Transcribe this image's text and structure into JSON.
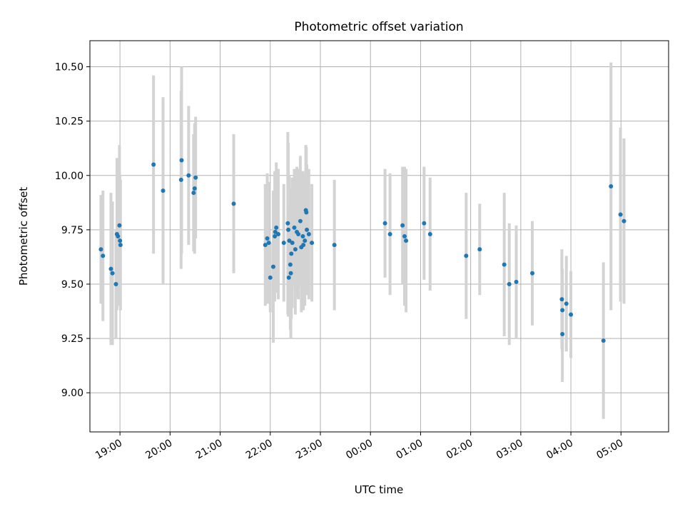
{
  "chart_data": {
    "type": "scatter",
    "title": "Photometric offset variation",
    "xlabel": "UTC time",
    "ylabel": "Photometric offset",
    "x_unit": "UTC time (hours; values past 24 denote the following day)",
    "xlim": [
      18.4,
      29.95
    ],
    "ylim": [
      8.82,
      10.62
    ],
    "x_ticks": [
      {
        "v": 19,
        "label": "19:00"
      },
      {
        "v": 20,
        "label": "20:00"
      },
      {
        "v": 21,
        "label": "21:00"
      },
      {
        "v": 22,
        "label": "22:00"
      },
      {
        "v": 23,
        "label": "23:00"
      },
      {
        "v": 24,
        "label": "00:00"
      },
      {
        "v": 25,
        "label": "01:00"
      },
      {
        "v": 26,
        "label": "02:00"
      },
      {
        "v": 27,
        "label": "03:00"
      },
      {
        "v": 28,
        "label": "04:00"
      },
      {
        "v": 29,
        "label": "05:00"
      }
    ],
    "y_ticks": [
      {
        "v": 9.0,
        "label": "9.00"
      },
      {
        "v": 9.25,
        "label": "9.25"
      },
      {
        "v": 9.5,
        "label": "9.50"
      },
      {
        "v": 9.75,
        "label": "9.75"
      },
      {
        "v": 10.0,
        "label": "10.00"
      },
      {
        "v": 10.25,
        "label": "10.25"
      },
      {
        "v": 10.5,
        "label": "10.50"
      }
    ],
    "grid": true,
    "colors": {
      "points": "#1f77b4",
      "error_bars": "#d3d3d3",
      "grid": "#b0b0b0"
    },
    "points": [
      {
        "x": 18.62,
        "y": 9.66,
        "err": 0.25
      },
      {
        "x": 18.66,
        "y": 9.63,
        "err": 0.3
      },
      {
        "x": 18.82,
        "y": 9.57,
        "err": 0.35
      },
      {
        "x": 18.85,
        "y": 9.55,
        "err": 0.33
      },
      {
        "x": 18.92,
        "y": 9.5,
        "err": 0.25
      },
      {
        "x": 18.94,
        "y": 9.73,
        "err": 0.35
      },
      {
        "x": 18.96,
        "y": 9.72,
        "err": 0.3
      },
      {
        "x": 18.99,
        "y": 9.77,
        "err": 0.37
      },
      {
        "x": 19.0,
        "y": 9.7,
        "err": 0.3
      },
      {
        "x": 19.01,
        "y": 9.68,
        "err": 0.3
      },
      {
        "x": 19.67,
        "y": 10.05,
        "err": 0.41
      },
      {
        "x": 19.86,
        "y": 9.93,
        "err": 0.43
      },
      {
        "x": 20.22,
        "y": 9.98,
        "err": 0.41
      },
      {
        "x": 20.23,
        "y": 10.07,
        "err": 0.43
      },
      {
        "x": 20.37,
        "y": 10.0,
        "err": 0.32
      },
      {
        "x": 20.47,
        "y": 9.92,
        "err": 0.27
      },
      {
        "x": 20.49,
        "y": 9.94,
        "err": 0.3
      },
      {
        "x": 20.51,
        "y": 9.99,
        "err": 0.28
      },
      {
        "x": 21.27,
        "y": 9.87,
        "err": 0.32
      },
      {
        "x": 21.9,
        "y": 9.68,
        "err": 0.28
      },
      {
        "x": 21.94,
        "y": 9.71,
        "err": 0.3
      },
      {
        "x": 21.97,
        "y": 9.69,
        "err": 0.28
      },
      {
        "x": 22.0,
        "y": 9.53,
        "err": 0.16
      },
      {
        "x": 22.06,
        "y": 9.58,
        "err": 0.35
      },
      {
        "x": 22.09,
        "y": 9.72,
        "err": 0.3
      },
      {
        "x": 22.1,
        "y": 9.74,
        "err": 0.27
      },
      {
        "x": 22.12,
        "y": 9.76,
        "err": 0.3
      },
      {
        "x": 22.16,
        "y": 9.73,
        "err": 0.3
      },
      {
        "x": 22.27,
        "y": 9.69,
        "err": 0.27
      },
      {
        "x": 22.35,
        "y": 9.78,
        "err": 0.42
      },
      {
        "x": 22.36,
        "y": 9.75,
        "err": 0.4
      },
      {
        "x": 22.37,
        "y": 9.53,
        "err": 0.16
      },
      {
        "x": 22.38,
        "y": 9.7,
        "err": 0.3
      },
      {
        "x": 22.4,
        "y": 9.59,
        "err": 0.3
      },
      {
        "x": 22.41,
        "y": 9.55,
        "err": 0.3
      },
      {
        "x": 22.42,
        "y": 9.64,
        "err": 0.3
      },
      {
        "x": 22.44,
        "y": 9.69,
        "err": 0.3
      },
      {
        "x": 22.48,
        "y": 9.76,
        "err": 0.27
      },
      {
        "x": 22.5,
        "y": 9.66,
        "err": 0.3
      },
      {
        "x": 22.53,
        "y": 9.74,
        "err": 0.3
      },
      {
        "x": 22.56,
        "y": 9.73,
        "err": 0.3
      },
      {
        "x": 22.6,
        "y": 9.79,
        "err": 0.3
      },
      {
        "x": 22.62,
        "y": 9.67,
        "err": 0.3
      },
      {
        "x": 22.65,
        "y": 9.72,
        "err": 0.3
      },
      {
        "x": 22.66,
        "y": 9.68,
        "err": 0.3
      },
      {
        "x": 22.69,
        "y": 9.7,
        "err": 0.3
      },
      {
        "x": 22.71,
        "y": 9.84,
        "err": 0.3
      },
      {
        "x": 22.72,
        "y": 9.83,
        "err": 0.3
      },
      {
        "x": 22.73,
        "y": 9.75,
        "err": 0.3
      },
      {
        "x": 22.77,
        "y": 9.73,
        "err": 0.3
      },
      {
        "x": 22.83,
        "y": 9.69,
        "err": 0.27
      },
      {
        "x": 23.28,
        "y": 9.68,
        "err": 0.3
      },
      {
        "x": 24.29,
        "y": 9.78,
        "err": 0.25
      },
      {
        "x": 24.39,
        "y": 9.73,
        "err": 0.28
      },
      {
        "x": 24.64,
        "y": 9.77,
        "err": 0.27
      },
      {
        "x": 24.68,
        "y": 9.72,
        "err": 0.32
      },
      {
        "x": 24.71,
        "y": 9.7,
        "err": 0.33
      },
      {
        "x": 25.07,
        "y": 9.78,
        "err": 0.26
      },
      {
        "x": 25.19,
        "y": 9.73,
        "err": 0.26
      },
      {
        "x": 25.91,
        "y": 9.63,
        "err": 0.29
      },
      {
        "x": 26.18,
        "y": 9.66,
        "err": 0.21
      },
      {
        "x": 26.67,
        "y": 9.59,
        "err": 0.33
      },
      {
        "x": 26.77,
        "y": 9.5,
        "err": 0.28
      },
      {
        "x": 26.91,
        "y": 9.51,
        "err": 0.26
      },
      {
        "x": 27.23,
        "y": 9.55,
        "err": 0.24
      },
      {
        "x": 27.83,
        "y": 9.27,
        "err": 0.22
      },
      {
        "x": 27.82,
        "y": 9.43,
        "err": 0.23
      },
      {
        "x": 27.83,
        "y": 9.38,
        "err": 0.19
      },
      {
        "x": 27.91,
        "y": 9.41,
        "err": 0.22
      },
      {
        "x": 28.0,
        "y": 9.36,
        "err": 0.2
      },
      {
        "x": 28.65,
        "y": 9.24,
        "err": 0.36
      },
      {
        "x": 28.8,
        "y": 9.95,
        "err": 0.57
      },
      {
        "x": 28.99,
        "y": 9.82,
        "err": 0.4
      },
      {
        "x": 29.06,
        "y": 9.79,
        "err": 0.38
      }
    ]
  }
}
